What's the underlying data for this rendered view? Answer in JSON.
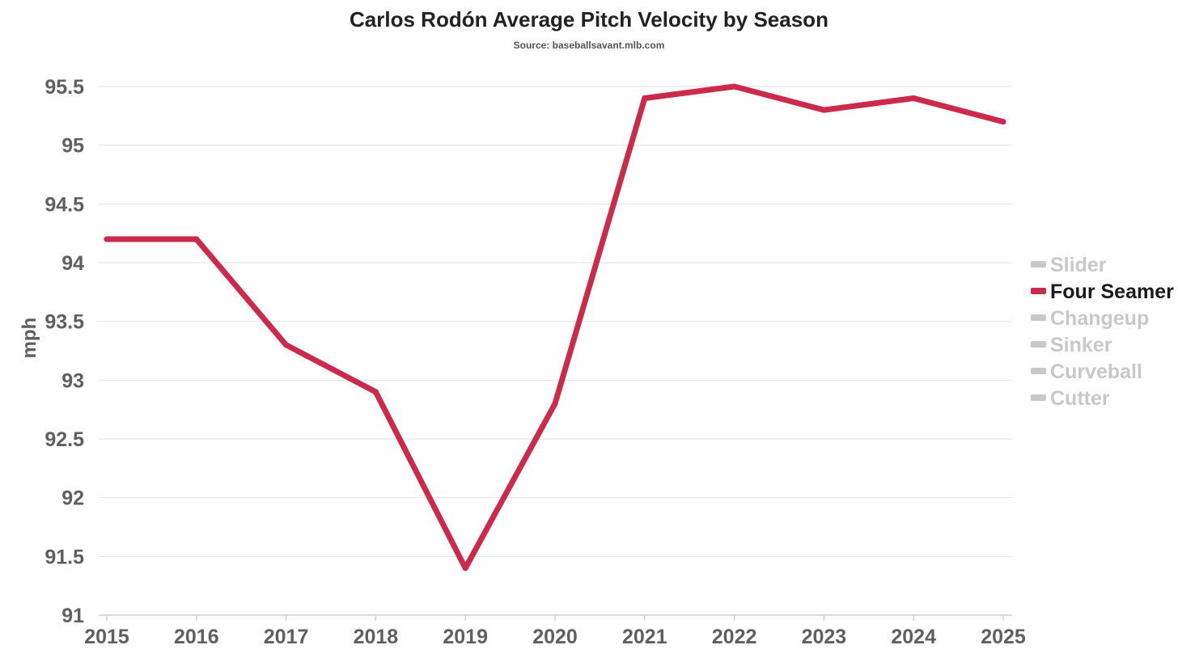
{
  "colors": {
    "four_seamer": "#cc2a4a",
    "inactive": "#c8c8c8",
    "active_text": "#1a1a1a",
    "tick_text": "#5f5f5f"
  },
  "chart_data": {
    "type": "line",
    "title": "Carlos Rodón Average Pitch Velocity by Season",
    "subtitle": "Source: baseballsavant.mlb.com",
    "xlabel": "",
    "ylabel": "mph",
    "ylim": [
      91,
      95.5
    ],
    "y_ticks": [
      "91",
      "91.5",
      "92",
      "92.5",
      "93",
      "93.5",
      "94",
      "94.5",
      "95",
      "95.5"
    ],
    "x": [
      "2015",
      "2016",
      "2017",
      "2018",
      "2019",
      "2020",
      "2021",
      "2022",
      "2023",
      "2024",
      "2025"
    ],
    "grid": true,
    "legend_position": "right",
    "series": [
      {
        "name": "Four Seamer",
        "active": true,
        "values": [
          94.2,
          94.2,
          93.3,
          92.9,
          91.4,
          92.8,
          95.4,
          95.5,
          95.3,
          95.4,
          95.2
        ]
      }
    ],
    "legend": [
      {
        "name": "Slider",
        "active": false
      },
      {
        "name": "Four Seamer",
        "active": true
      },
      {
        "name": "Changeup",
        "active": false
      },
      {
        "name": "Sinker",
        "active": false
      },
      {
        "name": "Curveball",
        "active": false
      },
      {
        "name": "Cutter",
        "active": false
      }
    ]
  }
}
